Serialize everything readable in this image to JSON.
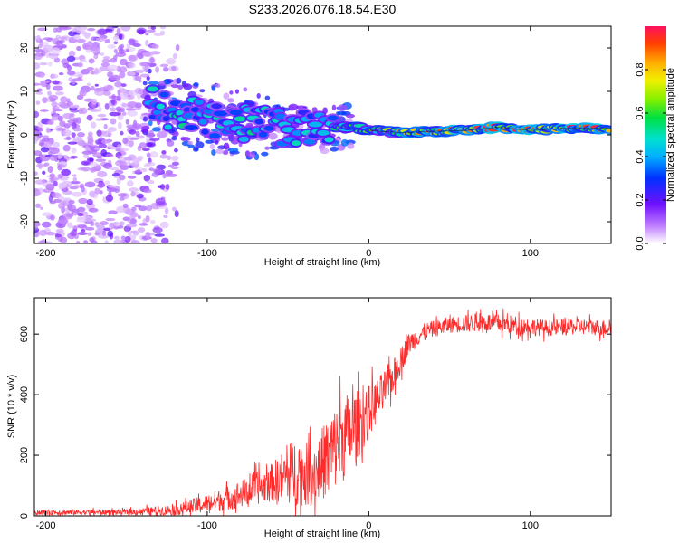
{
  "title": "S233.2026.076.18.54.E30",
  "chart_data": [
    {
      "type": "heatmap",
      "name": "spectrogram",
      "xlabel": "Height of straight line (km)",
      "ylabel": "Frequency (Hz)",
      "xlim": [
        -207,
        150
      ],
      "ylim": [
        -25,
        25
      ],
      "x_ticks": [
        -200,
        -100,
        0,
        100
      ],
      "y_ticks": [
        -20,
        -10,
        0,
        10,
        20
      ],
      "ridge": {
        "x": [
          -140,
          -120,
          -100,
          -80,
          -60,
          -40,
          -30,
          -20,
          -10,
          0,
          20,
          40,
          60,
          80,
          100,
          120,
          150
        ],
        "frequency": [
          8,
          5,
          4,
          3,
          2,
          1.5,
          1,
          1.5,
          2,
          1,
          0.5,
          0.8,
          1,
          1.8,
          1,
          1.5,
          1.5
        ]
      },
      "noise_region_x": [
        -207,
        -115
      ],
      "colorbar": {
        "label": "Normalized spectral amplitude",
        "range": [
          0,
          1
        ],
        "ticks": [
          0.0,
          0.2,
          0.4,
          0.6,
          0.8
        ],
        "tick_labels": [
          "0.0",
          "0.2",
          "0.4",
          "0.6",
          "0.8"
        ]
      }
    },
    {
      "type": "line",
      "name": "snr",
      "xlabel": "Height of straight line (km)",
      "ylabel": "SNR (10 * v/v)",
      "xlim": [
        -207,
        150
      ],
      "ylim": [
        0,
        720
      ],
      "x_ticks": [
        -200,
        -100,
        0,
        100
      ],
      "y_ticks": [
        0,
        200,
        400,
        600
      ],
      "color": "#ff2a2a",
      "envelope": {
        "x": [
          -207,
          -150,
          -120,
          -100,
          -80,
          -60,
          -45,
          -35,
          -25,
          -15,
          -5,
          5,
          15,
          25,
          35,
          50,
          70,
          90,
          110,
          130,
          150
        ],
        "center": [
          12,
          12,
          20,
          40,
          70,
          110,
          150,
          130,
          200,
          260,
          310,
          380,
          460,
          570,
          610,
          630,
          640,
          630,
          620,
          625,
          620
        ],
        "spread": [
          10,
          10,
          20,
          35,
          50,
          70,
          130,
          110,
          150,
          160,
          120,
          80,
          60,
          40,
          30,
          30,
          35,
          35,
          30,
          30,
          30
        ]
      }
    }
  ]
}
